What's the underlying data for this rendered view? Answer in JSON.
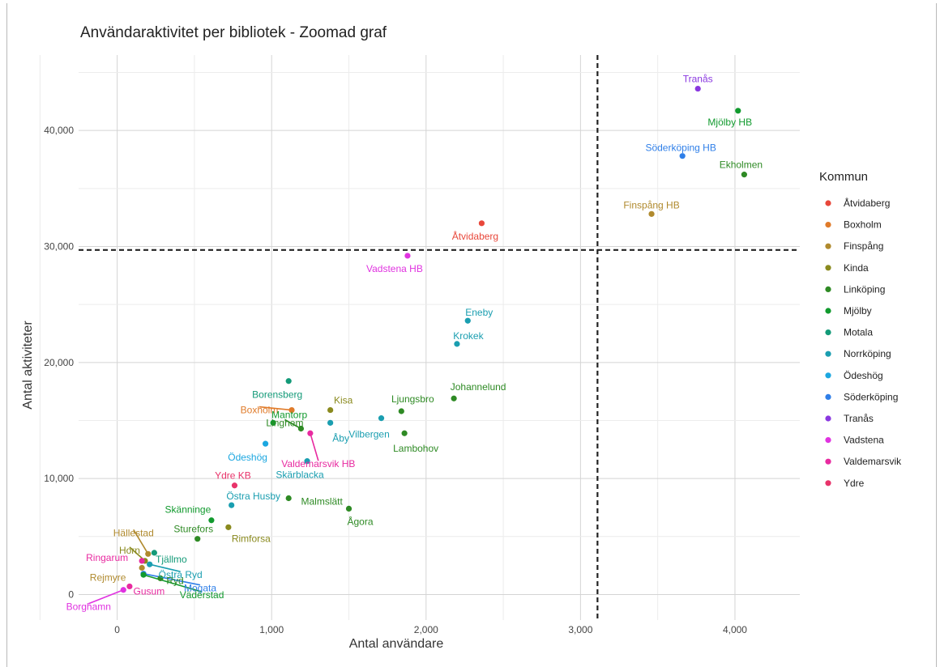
{
  "chart_data": {
    "type": "scatter",
    "title": "Användaraktivitet per bibliotek - Zoomad graf",
    "xlabel": "Antal användare",
    "ylabel": "Antal aktiviteter",
    "xlim": [
      -250,
      4420
    ],
    "ylim": [
      -2200,
      46500
    ],
    "x_ticks": [
      0,
      1000,
      2000,
      3000,
      4000
    ],
    "x_tick_labels": [
      "0",
      "1,000",
      "2,000",
      "3,000",
      "4,000"
    ],
    "y_ticks": [
      0,
      10000,
      20000,
      30000,
      40000
    ],
    "y_tick_labels": [
      "0",
      "10,000",
      "20,000",
      "30,000",
      "40,000"
    ],
    "grid": true,
    "reference_lines": {
      "x": 3110,
      "y": 29700,
      "style": "dashed"
    },
    "legend": {
      "title": "Kommun",
      "position": "right",
      "entries": [
        {
          "name": "Åtvidaberg",
          "color": "#e8473a"
        },
        {
          "name": "Boxholm",
          "color": "#e07b2a"
        },
        {
          "name": "Finspång",
          "color": "#b08a2e"
        },
        {
          "name": "Kinda",
          "color": "#8a8a1e"
        },
        {
          "name": "Linköping",
          "color": "#2e8a24"
        },
        {
          "name": "Mjölby",
          "color": "#119a2e"
        },
        {
          "name": "Motala",
          "color": "#139a78"
        },
        {
          "name": "Norrköping",
          "color": "#1a9eb0"
        },
        {
          "name": "Ödeshög",
          "color": "#1ca7e0"
        },
        {
          "name": "Söderköping",
          "color": "#2f7fe8"
        },
        {
          "name": "Tranås",
          "color": "#8a38e0"
        },
        {
          "name": "Vadstena",
          "color": "#e033e0"
        },
        {
          "name": "Valdemarsvik",
          "color": "#e82aa0"
        },
        {
          "name": "Ydre",
          "color": "#e8336a"
        }
      ]
    },
    "points": [
      {
        "label": "Tranås",
        "x": 3760,
        "y": 43600,
        "kommun": "Tranås"
      },
      {
        "label": "Mjölby HB",
        "x": 4020,
        "y": 41700,
        "kommun": "Mjölby"
      },
      {
        "label": "Söderköping HB",
        "x": 3660,
        "y": 37800,
        "kommun": "Söderköping"
      },
      {
        "label": "Ekholmen",
        "x": 4060,
        "y": 36200,
        "kommun": "Linköping"
      },
      {
        "label": "Finspång HB",
        "x": 3460,
        "y": 32800,
        "kommun": "Finspång"
      },
      {
        "label": "Åtvidaberg",
        "x": 2360,
        "y": 32000,
        "kommun": "Åtvidaberg"
      },
      {
        "label": "Vadstena HB",
        "x": 1880,
        "y": 29200,
        "kommun": "Vadstena"
      },
      {
        "label": "Eneby",
        "x": 2270,
        "y": 23600,
        "kommun": "Norrköping"
      },
      {
        "label": "Krokek",
        "x": 2200,
        "y": 21600,
        "kommun": "Norrköping"
      },
      {
        "label": "Borensberg",
        "x": 1110,
        "y": 18400,
        "kommun": "Motala"
      },
      {
        "label": "Johannelund",
        "x": 2180,
        "y": 16900,
        "kommun": "Linköping"
      },
      {
        "label": "Kisa",
        "x": 1380,
        "y": 15900,
        "kommun": "Kinda"
      },
      {
        "label": "Boxholm",
        "x": 1130,
        "y": 15900,
        "kommun": "Boxholm"
      },
      {
        "label": "Ljungsbro",
        "x": 1840,
        "y": 15800,
        "kommun": "Linköping"
      },
      {
        "label": "Vilbergen",
        "x": 1710,
        "y": 15200,
        "kommun": "Norrköping"
      },
      {
        "label": "Mantorp",
        "x": 1010,
        "y": 14800,
        "kommun": "Mjölby"
      },
      {
        "label": "Åby",
        "x": 1380,
        "y": 14800,
        "kommun": "Norrköping"
      },
      {
        "label": "Linghem",
        "x": 1190,
        "y": 14300,
        "kommun": "Linköping"
      },
      {
        "label": "Lambohov",
        "x": 1860,
        "y": 13900,
        "kommun": "Linköping"
      },
      {
        "label": "Valdemarsvik HB",
        "x": 1250,
        "y": 13900,
        "kommun": "Valdemarsvik"
      },
      {
        "label": "Ödeshög",
        "x": 960,
        "y": 13000,
        "kommun": "Ödeshög"
      },
      {
        "label": "Skärblacka",
        "x": 1230,
        "y": 11500,
        "kommun": "Norrköping"
      },
      {
        "label": "Ydre KB",
        "x": 760,
        "y": 9400,
        "kommun": "Ydre"
      },
      {
        "label": "Östra Husby",
        "x": 740,
        "y": 7700,
        "kommun": "Norrköping"
      },
      {
        "label": "Malmslätt",
        "x": 1110,
        "y": 8300,
        "kommun": "Linköping"
      },
      {
        "label": "Ågora",
        "x": 1500,
        "y": 7400,
        "kommun": "Linköping"
      },
      {
        "label": "Skänninge",
        "x": 610,
        "y": 6400,
        "kommun": "Mjölby"
      },
      {
        "label": "Rimforsa",
        "x": 720,
        "y": 5800,
        "kommun": "Kinda"
      },
      {
        "label": "Sturefors",
        "x": 520,
        "y": 4800,
        "kommun": "Linköping"
      },
      {
        "label": "Hällestad",
        "x": 200,
        "y": 3500,
        "kommun": "Finspång"
      },
      {
        "label": "Tjällmo",
        "x": 240,
        "y": 3600,
        "kommun": "Motala"
      },
      {
        "label": "Horn",
        "x": 180,
        "y": 2900,
        "kommun": "Kinda"
      },
      {
        "label": "Östra Ryd",
        "x": 210,
        "y": 2600,
        "kommun": "Norrköping"
      },
      {
        "label": "Ringarum",
        "x": 160,
        "y": 2900,
        "kommun": "Valdemarsvik"
      },
      {
        "label": "Rejmyre",
        "x": 160,
        "y": 2300,
        "kommun": "Finspång"
      },
      {
        "label": "Ryd",
        "x": 280,
        "y": 1400,
        "kommun": "Linköping"
      },
      {
        "label": "Mogata",
        "x": 170,
        "y": 1800,
        "kommun": "Söderköping"
      },
      {
        "label": "Väderstad",
        "x": 170,
        "y": 1700,
        "kommun": "Mjölby"
      },
      {
        "label": "Gusum",
        "x": 80,
        "y": 700,
        "kommun": "Valdemarsvik"
      },
      {
        "label": "Borghamn",
        "x": 40,
        "y": 400,
        "kommun": "Vadstena"
      }
    ]
  }
}
